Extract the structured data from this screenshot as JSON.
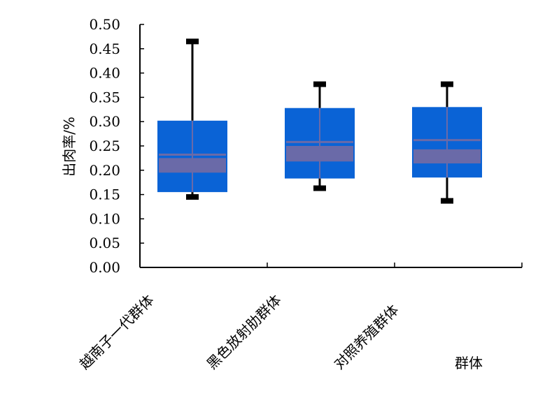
{
  "chart_data": {
    "type": "box",
    "xlabel": "群体",
    "ylabel": "出肉率/%",
    "ylim": [
      0,
      0.5
    ],
    "yticks": [
      "0.00",
      "0.05",
      "0.10",
      "0.15",
      "0.20",
      "0.25",
      "0.30",
      "0.35",
      "0.40",
      "0.45",
      "0.50"
    ],
    "categories": [
      "越南子一代群体",
      "黑色放射肋群体",
      "对照养殖群体"
    ],
    "series": [
      {
        "category": "越南子一代群体",
        "min": 0.145,
        "q1": 0.155,
        "median_band_low": 0.195,
        "median_band_high": 0.225,
        "mean": 0.232,
        "q3": 0.302,
        "max": 0.465
      },
      {
        "category": "黑色放射肋群体",
        "min": 0.163,
        "q1": 0.183,
        "median_band_low": 0.218,
        "median_band_high": 0.25,
        "mean": 0.258,
        "q3": 0.328,
        "max": 0.377
      },
      {
        "category": "对照养殖群体",
        "min": 0.137,
        "q1": 0.185,
        "median_band_low": 0.214,
        "median_band_high": 0.243,
        "mean": 0.262,
        "q3": 0.33,
        "max": 0.377
      }
    ],
    "colors": {
      "box": "#0a63d6",
      "band": "#6a6aa8",
      "whisker": "#000000"
    },
    "grid": false,
    "legend": "none"
  }
}
